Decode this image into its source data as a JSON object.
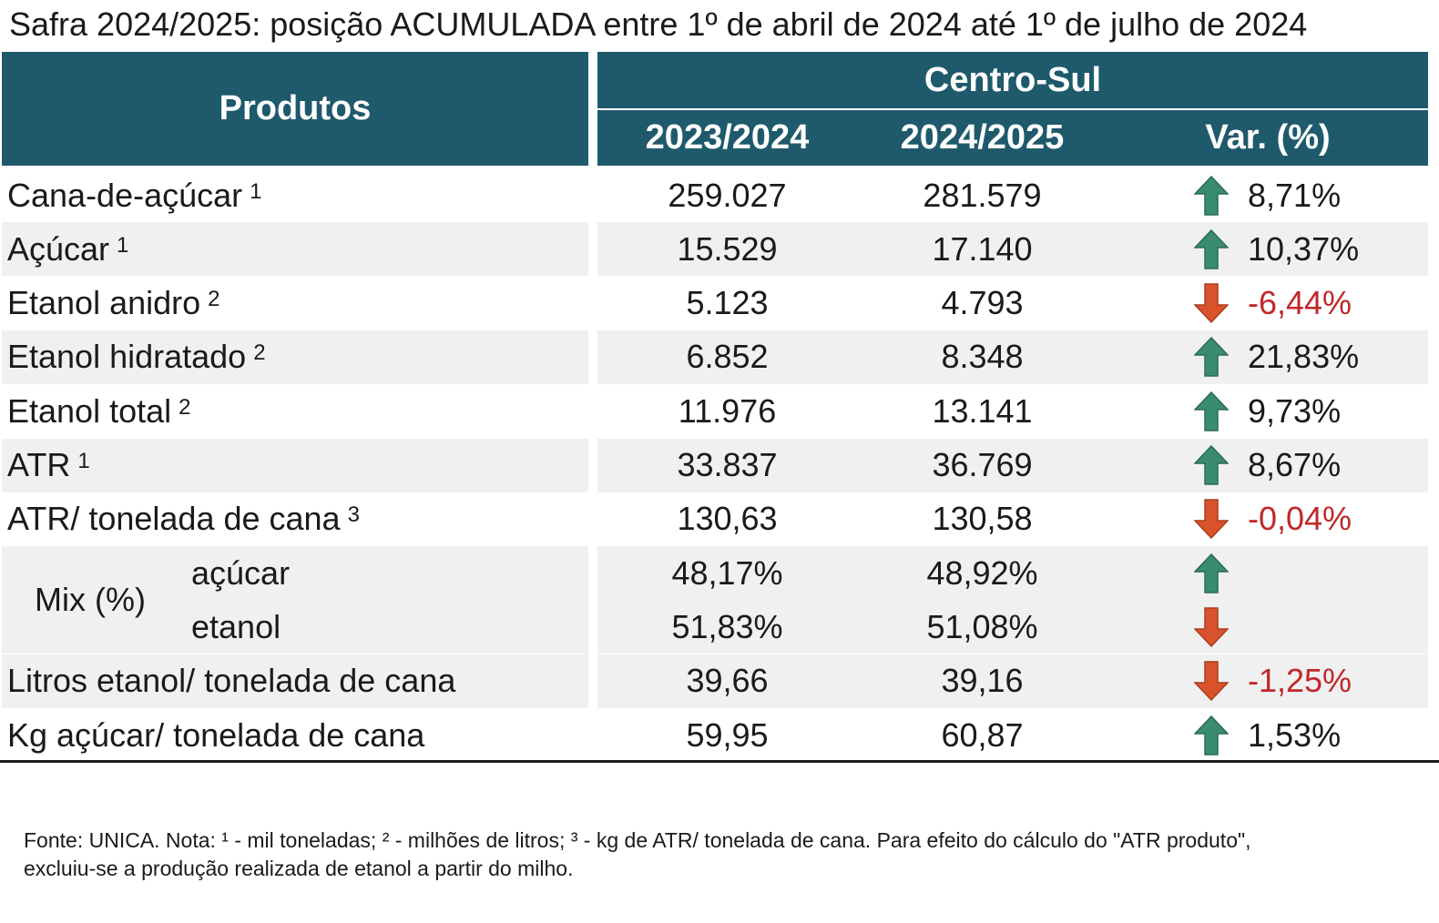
{
  "title": "Safra 2024/2025: posição ACUMULADA entre 1º de abril de 2024 até 1º de julho de 2024",
  "colors": {
    "header_bg": "#1e5a6b",
    "up_arrow": "#3a8c6e",
    "down_arrow": "#d9522b",
    "negative_text": "#c0282a",
    "row_shade": "#f0f0f0"
  },
  "chart_data": {
    "type": "table",
    "header": {
      "produtos": "Produtos",
      "region": "Centro-Sul",
      "col1": "2023/2024",
      "col2": "2024/2025",
      "col3": "Var. (%)"
    },
    "rows": [
      {
        "name": "Cana-de-açúcar",
        "note": "1",
        "v2023": "259.027",
        "v2024": "281.579",
        "direction": "up",
        "var": "8,71%"
      },
      {
        "name": "Açúcar",
        "note": "1",
        "v2023": "15.529",
        "v2024": "17.140",
        "direction": "up",
        "var": "10,37%"
      },
      {
        "name": "Etanol anidro",
        "note": "2",
        "v2023": "5.123",
        "v2024": "4.793",
        "direction": "down",
        "var": "-6,44%"
      },
      {
        "name": "Etanol hidratado",
        "note": "2",
        "v2023": "6.852",
        "v2024": "8.348",
        "direction": "up",
        "var": "21,83%"
      },
      {
        "name": "Etanol total",
        "note": "2",
        "v2023": "11.976",
        "v2024": "13.141",
        "direction": "up",
        "var": "9,73%"
      },
      {
        "name": "ATR",
        "note": "1",
        "v2023": "33.837",
        "v2024": "36.769",
        "direction": "up",
        "var": "8,67%"
      },
      {
        "name": "ATR/ tonelada de cana",
        "note": "3",
        "v2023": "130,63",
        "v2024": "130,58",
        "direction": "down",
        "var": "-0,04%"
      }
    ],
    "mix": {
      "label": "Mix (%)",
      "rows": [
        {
          "name": "açúcar",
          "v2023": "48,17%",
          "v2024": "48,92%",
          "direction": "up"
        },
        {
          "name": "etanol",
          "v2023": "51,83%",
          "v2024": "51,08%",
          "direction": "down"
        }
      ]
    },
    "rows_after": [
      {
        "name": "Litros etanol/ tonelada de cana",
        "v2023": "39,66",
        "v2024": "39,16",
        "direction": "down",
        "var": "-1,25%"
      },
      {
        "name": "Kg açúcar/ tonelada de cana",
        "v2023": "59,95",
        "v2024": "60,87",
        "direction": "up",
        "var": "1,53%"
      }
    ]
  },
  "footnote": {
    "line1": "Fonte: UNICA. Nota: ¹ - mil toneladas; ² - milhões de litros; ³ - kg de ATR/ tonelada de cana. Para efeito do cálculo do \"ATR produto\",",
    "line2": "excluiu-se a produção realizada de etanol a partir do milho."
  }
}
